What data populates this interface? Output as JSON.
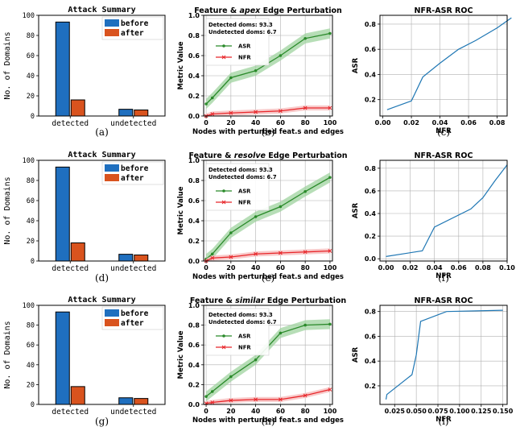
{
  "colors": {
    "before": "#1f6fbf",
    "after": "#d9531e",
    "asr": "#2a8a2a",
    "asr_band": "#9fd39f",
    "nfr": "#e8262a",
    "nfr_band": "#f6b8b8",
    "roc": "#1f77b4",
    "grid": "#b0b0b0"
  },
  "chart_data": [
    {
      "id": "a",
      "type": "bar",
      "caption": "(a)",
      "title": "Attack Summary",
      "ylabel": "No. of Domains",
      "xlabel": "",
      "categories": [
        "detected",
        "undetected"
      ],
      "series": [
        {
          "name": "before",
          "values": [
            93.3,
            6.7
          ]
        },
        {
          "name": "after",
          "values": [
            16,
            6
          ]
        }
      ],
      "ylim": [
        0,
        100
      ],
      "yticks": [
        "0",
        "20",
        "40",
        "60",
        "80",
        "100"
      ],
      "legend": "top-right",
      "grid": false
    },
    {
      "id": "b",
      "type": "line",
      "caption": "(b)",
      "title_parts": [
        "Feature & ",
        "apex",
        " Edge Perturbation"
      ],
      "xlabel": "Nodes with perturbed feat.s and edges",
      "ylabel": "Metric Value",
      "x": [
        0,
        5,
        20,
        40,
        60,
        80,
        100
      ],
      "series": [
        {
          "name": "ASR",
          "values": [
            0.12,
            0.18,
            0.38,
            0.45,
            0.6,
            0.77,
            0.82
          ],
          "band": 0.05
        },
        {
          "name": "NFR",
          "values": [
            0.0,
            0.02,
            0.03,
            0.04,
            0.05,
            0.08,
            0.08
          ],
          "band": 0.025
        }
      ],
      "annotation": [
        "Detected doms: 93.3",
        "Undetected doms: 6.7"
      ],
      "xlim": [
        -2,
        102
      ],
      "ylim": [
        0,
        1.0
      ],
      "xticks": [
        "0",
        "20",
        "40",
        "60",
        "80",
        "100"
      ],
      "yticks": [
        "0.0",
        "0.2",
        "0.4",
        "0.6",
        "0.8",
        "1.0"
      ],
      "grid": true,
      "legend": "top-left"
    },
    {
      "id": "c",
      "type": "line",
      "caption": "(c)",
      "title": "NFR-ASR ROC",
      "xlabel": "NFR",
      "ylabel": "ASR",
      "x": [
        0.003,
        0.02,
        0.028,
        0.04,
        0.053,
        0.065,
        0.08,
        0.09
      ],
      "series": [
        {
          "values": [
            0.12,
            0.19,
            0.38,
            0.49,
            0.6,
            0.67,
            0.77,
            0.85
          ]
        }
      ],
      "xlim": [
        -0.002,
        0.087
      ],
      "ylim": [
        0.07,
        0.87
      ],
      "xticks": [
        "0.00",
        "0.02",
        "0.04",
        "0.06",
        "0.08"
      ],
      "yticks": [
        "0.2",
        "0.4",
        "0.6",
        "0.8"
      ],
      "grid": true
    },
    {
      "id": "d",
      "type": "bar",
      "caption": "(d)",
      "title": "Attack Summary",
      "ylabel": "No. of Domains",
      "xlabel": "",
      "categories": [
        "detected",
        "undetected"
      ],
      "series": [
        {
          "name": "before",
          "values": [
            93.3,
            6.7
          ]
        },
        {
          "name": "after",
          "values": [
            18,
            6
          ]
        }
      ],
      "ylim": [
        0,
        100
      ],
      "yticks": [
        "0",
        "20",
        "40",
        "60",
        "80",
        "100"
      ],
      "legend": "top-right",
      "grid": false
    },
    {
      "id": "e",
      "type": "line",
      "caption": "(e)",
      "title_parts": [
        "Feature & ",
        "resolve",
        " Edge Perturbation"
      ],
      "xlabel": "Nodes with perturbed feat.s and edges",
      "ylabel": "Metric Value",
      "x": [
        0,
        5,
        20,
        40,
        60,
        80,
        100
      ],
      "series": [
        {
          "name": "ASR",
          "values": [
            0.02,
            0.07,
            0.28,
            0.44,
            0.54,
            0.69,
            0.83
          ],
          "band": 0.05
        },
        {
          "name": "NFR",
          "values": [
            0.0,
            0.03,
            0.04,
            0.07,
            0.08,
            0.09,
            0.1
          ],
          "band": 0.025
        }
      ],
      "annotation": [
        "Detected doms: 93.3",
        "Undetected doms: 6.7"
      ],
      "xlim": [
        -2,
        102
      ],
      "ylim": [
        0,
        1.0
      ],
      "xticks": [
        "0",
        "20",
        "40",
        "60",
        "80",
        "100"
      ],
      "yticks": [
        "0.0",
        "0.2",
        "0.4",
        "0.6",
        "0.8",
        "1.0"
      ],
      "grid": true,
      "legend": "top-left"
    },
    {
      "id": "f",
      "type": "line",
      "caption": "(f)",
      "title": "NFR-ASR ROC",
      "xlabel": "NFR",
      "ylabel": "ASR",
      "x": [
        0.0,
        0.03,
        0.04,
        0.07,
        0.08,
        0.09,
        0.1
      ],
      "series": [
        {
          "values": [
            0.02,
            0.07,
            0.28,
            0.44,
            0.54,
            0.69,
            0.83
          ]
        }
      ],
      "xlim": [
        -0.005,
        0.1
      ],
      "ylim": [
        -0.02,
        0.87
      ],
      "xticks": [
        "0.00",
        "0.02",
        "0.04",
        "0.06",
        "0.08",
        "0.10"
      ],
      "yticks": [
        "0.0",
        "0.2",
        "0.4",
        "0.6",
        "0.8"
      ],
      "grid": true
    },
    {
      "id": "g",
      "type": "bar",
      "caption": "(g)",
      "title": "Attack Summary",
      "ylabel": "No. of Domains",
      "xlabel": "",
      "categories": [
        "detected",
        "undetected"
      ],
      "series": [
        {
          "name": "before",
          "values": [
            93.3,
            6.7
          ]
        },
        {
          "name": "after",
          "values": [
            18,
            6
          ]
        }
      ],
      "ylim": [
        0,
        100
      ],
      "yticks": [
        "0",
        "20",
        "40",
        "60",
        "80",
        "100"
      ],
      "legend": "top-right",
      "grid": false
    },
    {
      "id": "h",
      "type": "line",
      "caption": "(h)",
      "title_parts": [
        "Feature & ",
        "similar",
        " Edge Perturbation"
      ],
      "xlabel": "Nodes with perturbed feat.s and edges",
      "ylabel": "Metric Value",
      "x": [
        0,
        5,
        20,
        40,
        60,
        80,
        100
      ],
      "series": [
        {
          "name": "ASR",
          "values": [
            0.08,
            0.13,
            0.28,
            0.45,
            0.72,
            0.8,
            0.81
          ],
          "band": 0.05
        },
        {
          "name": "NFR",
          "values": [
            0.01,
            0.02,
            0.04,
            0.05,
            0.05,
            0.09,
            0.15
          ],
          "band": 0.025
        }
      ],
      "annotation": [
        "Detected doms: 93.3",
        "Undetected doms: 6.7"
      ],
      "xlim": [
        -2,
        102
      ],
      "ylim": [
        0,
        1.0
      ],
      "xticks": [
        "0",
        "20",
        "40",
        "60",
        "80",
        "100"
      ],
      "yticks": [
        "0.0",
        "0.2",
        "0.4",
        "0.6",
        "0.8",
        "1.0"
      ],
      "grid": true,
      "legend": "top-left"
    },
    {
      "id": "i",
      "type": "line",
      "caption": "(i)",
      "title": "NFR-ASR ROC",
      "xlabel": "NFR",
      "ylabel": "ASR",
      "x": [
        0.015,
        0.016,
        0.045,
        0.05,
        0.055,
        0.085,
        0.15
      ],
      "series": [
        {
          "values": [
            0.09,
            0.13,
            0.29,
            0.45,
            0.72,
            0.8,
            0.81
          ]
        }
      ],
      "xlim": [
        0.008,
        0.155
      ],
      "ylim": [
        0.05,
        0.85
      ],
      "xticks": [
        "0.025",
        "0.050",
        "0.075",
        "0.100",
        "0.125",
        "0.150"
      ],
      "yticks": [
        "0.2",
        "0.4",
        "0.6",
        "0.8"
      ],
      "grid": true
    }
  ]
}
